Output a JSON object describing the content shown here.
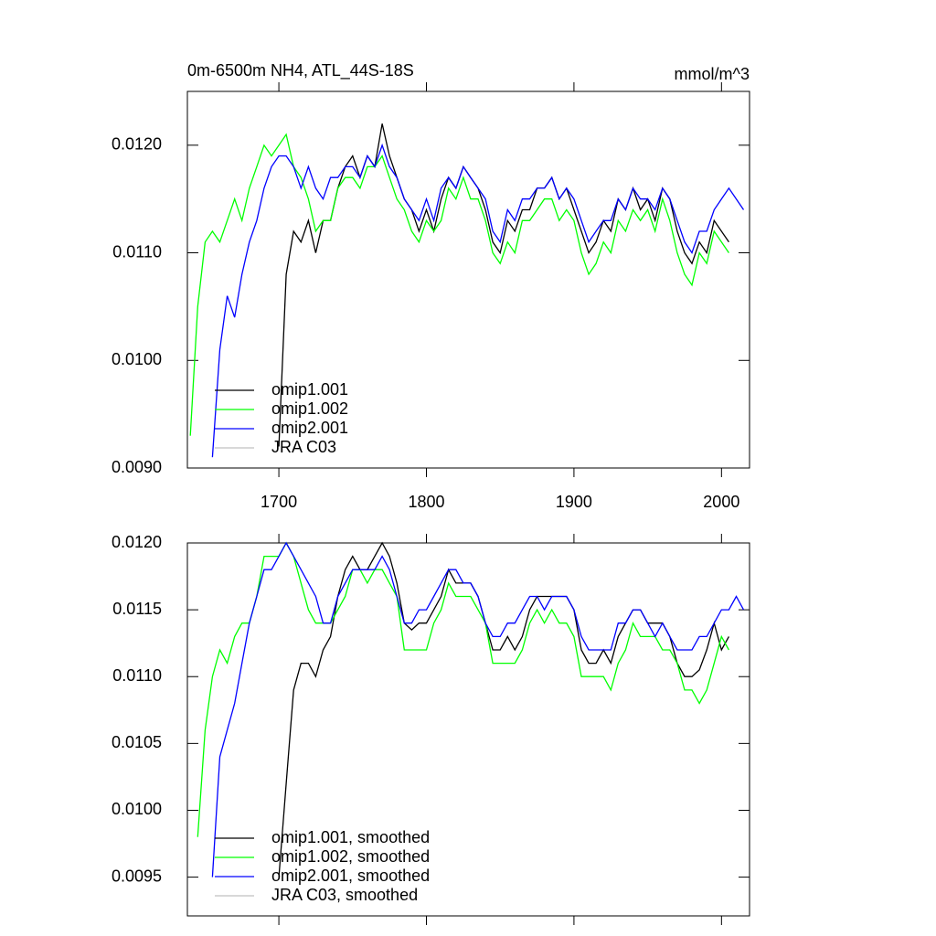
{
  "chart_data": [
    {
      "type": "line",
      "title": "0m-6500m NH4, ATL_44S-18S",
      "subtitle": "mmol/m^3",
      "x": [
        1640,
        1645,
        1650,
        1655,
        1660,
        1665,
        1670,
        1675,
        1680,
        1685,
        1690,
        1695,
        1700,
        1705,
        1710,
        1715,
        1720,
        1725,
        1730,
        1735,
        1740,
        1745,
        1750,
        1755,
        1760,
        1765,
        1770,
        1775,
        1780,
        1785,
        1790,
        1795,
        1800,
        1805,
        1810,
        1815,
        1820,
        1825,
        1830,
        1835,
        1840,
        1845,
        1850,
        1855,
        1860,
        1865,
        1870,
        1875,
        1880,
        1885,
        1890,
        1895,
        1900,
        1905,
        1910,
        1915,
        1920,
        1925,
        1930,
        1935,
        1940,
        1945,
        1950,
        1955,
        1960,
        1965,
        1970,
        1975,
        1980,
        1985,
        1990,
        1995,
        2000,
        2005,
        2010,
        2015
      ],
      "xlim": [
        1638,
        2019
      ],
      "xticks": [
        1700,
        1800,
        1900,
        2000
      ],
      "xtick_labels": true,
      "ylim": [
        0.009,
        0.0125
      ],
      "yticks": [
        {
          "value": 0.009,
          "label": "0.0090"
        },
        {
          "value": 0.01,
          "label": "0.0100"
        },
        {
          "value": 0.011,
          "label": "0.0110"
        },
        {
          "value": 0.012,
          "label": "0.0120"
        }
      ],
      "legend": "lower left",
      "series": [
        {
          "name": "omip1.001",
          "color": "#000000",
          "values": [
            null,
            null,
            null,
            null,
            null,
            null,
            null,
            null,
            null,
            null,
            null,
            null,
            0.0092,
            0.0108,
            0.0112,
            0.0111,
            0.0113,
            0.011,
            0.0113,
            0.0113,
            0.0116,
            0.0118,
            0.0119,
            0.0117,
            0.0119,
            0.0118,
            0.0122,
            0.0119,
            0.0117,
            0.0115,
            0.0114,
            0.0112,
            0.0114,
            0.0112,
            0.0115,
            0.0117,
            0.0116,
            0.0118,
            0.0117,
            0.0116,
            0.0114,
            0.0111,
            0.011,
            0.0113,
            0.0112,
            0.0114,
            0.0114,
            0.0116,
            0.0116,
            0.0117,
            0.0115,
            0.0116,
            0.0114,
            0.0112,
            0.011,
            0.0111,
            0.0113,
            0.0112,
            0.0115,
            0.0114,
            0.0116,
            0.0114,
            0.0115,
            0.0113,
            0.0116,
            0.0115,
            0.0112,
            0.011,
            0.0109,
            0.0111,
            0.011,
            0.0113,
            0.0112,
            0.0111,
            null,
            null
          ]
        },
        {
          "name": "omip1.002",
          "color": "#00ff00",
          "values": [
            0.0093,
            0.0105,
            0.0111,
            0.0112,
            0.0111,
            0.0113,
            0.0115,
            0.0113,
            0.0116,
            0.0118,
            0.012,
            0.0119,
            0.012,
            0.0121,
            0.0118,
            0.0117,
            0.0115,
            0.0112,
            0.0113,
            0.0113,
            0.0116,
            0.0117,
            0.0117,
            0.0116,
            0.0118,
            0.0118,
            0.0119,
            0.0117,
            0.0115,
            0.0114,
            0.0112,
            0.0111,
            0.0113,
            0.0112,
            0.0113,
            0.0116,
            0.0115,
            0.0117,
            0.0115,
            0.0115,
            0.0113,
            0.011,
            0.0109,
            0.0111,
            0.011,
            0.0113,
            0.0113,
            0.0114,
            0.0115,
            0.0115,
            0.0113,
            0.0114,
            0.0113,
            0.011,
            0.0108,
            0.0109,
            0.0111,
            0.011,
            0.0113,
            0.0112,
            0.0114,
            0.0113,
            0.0114,
            0.0112,
            0.0115,
            0.0113,
            0.011,
            0.0108,
            0.0107,
            0.011,
            0.0109,
            0.0112,
            0.0111,
            0.011,
            null,
            null
          ]
        },
        {
          "name": "omip2.001",
          "color": "#0000ff",
          "values": [
            null,
            null,
            null,
            0.0091,
            0.0101,
            0.0106,
            0.0104,
            0.0108,
            0.0111,
            0.0113,
            0.0116,
            0.0118,
            0.0119,
            0.0119,
            0.0118,
            0.0116,
            0.0118,
            0.0116,
            0.0115,
            0.0117,
            0.0117,
            0.0118,
            0.0118,
            0.0117,
            0.0119,
            0.0118,
            0.012,
            0.0118,
            0.0117,
            0.0115,
            0.0114,
            0.0113,
            0.0115,
            0.0113,
            0.0116,
            0.0117,
            0.0116,
            0.0118,
            0.0117,
            0.0116,
            0.0115,
            0.0112,
            0.0111,
            0.0114,
            0.0113,
            0.0115,
            0.0115,
            0.0116,
            0.0116,
            0.0117,
            0.0115,
            0.0116,
            0.0115,
            0.0113,
            0.0111,
            0.0112,
            0.0113,
            0.0113,
            0.0115,
            0.0114,
            0.0116,
            0.0115,
            0.0115,
            0.0114,
            0.0116,
            0.0115,
            0.0113,
            0.0111,
            0.011,
            0.0112,
            0.0112,
            0.0114,
            0.0115,
            0.0116,
            0.0115,
            0.0114
          ]
        },
        {
          "name": "JRA C03",
          "color": "#c0c0c0",
          "values": [
            null,
            null,
            null,
            null,
            null,
            null,
            null,
            null,
            null,
            null,
            null,
            null,
            null,
            null,
            null,
            null,
            null,
            null,
            null,
            null,
            null,
            null,
            null,
            null,
            null,
            null,
            null,
            null,
            null,
            null,
            null,
            null,
            null,
            null,
            null,
            null,
            null,
            null,
            null,
            null,
            null,
            null,
            null,
            null,
            null,
            null,
            null,
            null,
            null,
            null,
            null,
            null,
            null,
            null,
            null,
            null,
            null,
            null,
            null,
            null,
            null,
            null,
            null,
            null,
            null,
            null,
            null,
            null,
            null,
            null,
            null,
            null,
            null,
            null,
            null,
            null
          ]
        }
      ]
    },
    {
      "type": "line",
      "x": [
        1640,
        1645,
        1650,
        1655,
        1660,
        1665,
        1670,
        1675,
        1680,
        1685,
        1690,
        1695,
        1700,
        1705,
        1710,
        1715,
        1720,
        1725,
        1730,
        1735,
        1740,
        1745,
        1750,
        1755,
        1760,
        1765,
        1770,
        1775,
        1780,
        1785,
        1790,
        1795,
        1800,
        1805,
        1810,
        1815,
        1820,
        1825,
        1830,
        1835,
        1840,
        1845,
        1850,
        1855,
        1860,
        1865,
        1870,
        1875,
        1880,
        1885,
        1890,
        1895,
        1900,
        1905,
        1910,
        1915,
        1920,
        1925,
        1930,
        1935,
        1940,
        1945,
        1950,
        1955,
        1960,
        1965,
        1970,
        1975,
        1980,
        1985,
        1990,
        1995,
        2000,
        2005,
        2010,
        2015
      ],
      "xlim": [
        1638,
        2019
      ],
      "xticks": [
        1700,
        1800,
        1900,
        2000
      ],
      "xtick_labels": false,
      "ylim": [
        0.00921,
        0.012
      ],
      "yticks": [
        {
          "value": 0.0095,
          "label": "0.0095"
        },
        {
          "value": 0.01,
          "label": "0.0100"
        },
        {
          "value": 0.0105,
          "label": "0.0105"
        },
        {
          "value": 0.011,
          "label": "0.0110"
        },
        {
          "value": 0.0115,
          "label": "0.0115"
        },
        {
          "value": 0.012,
          "label": "0.0120"
        }
      ],
      "legend": "lower left",
      "series": [
        {
          "name": "omip1.001, smoothed",
          "color": "#000000",
          "values": [
            null,
            null,
            null,
            null,
            null,
            null,
            null,
            null,
            null,
            null,
            null,
            null,
            0.0095,
            0.0102,
            0.0109,
            0.0111,
            0.0111,
            0.011,
            0.0112,
            0.0113,
            0.0116,
            0.0118,
            0.0119,
            0.0118,
            0.0118,
            0.0119,
            0.012,
            0.0119,
            0.0117,
            0.0114,
            0.01135,
            0.0114,
            0.0114,
            0.0115,
            0.0116,
            0.0118,
            0.0117,
            0.0117,
            0.0117,
            0.0116,
            0.0114,
            0.0112,
            0.0112,
            0.0113,
            0.0112,
            0.0113,
            0.0115,
            0.0116,
            0.0116,
            0.0116,
            0.0116,
            0.0116,
            0.0115,
            0.0112,
            0.0111,
            0.0111,
            0.0112,
            0.0111,
            0.0113,
            0.0114,
            0.0115,
            0.0115,
            0.0114,
            0.0114,
            0.0114,
            0.0113,
            0.0111,
            0.011,
            0.011,
            0.01105,
            0.0112,
            0.0114,
            0.0112,
            0.0113,
            null,
            null
          ]
        },
        {
          "name": "omip1.002, smoothed",
          "color": "#00ff00",
          "values": [
            null,
            0.0098,
            0.0106,
            0.011,
            0.0112,
            0.0111,
            0.0113,
            0.0114,
            0.0114,
            0.0116,
            0.0119,
            0.0119,
            0.0119,
            0.012,
            0.0119,
            0.0117,
            0.0115,
            0.0114,
            0.0114,
            0.0114,
            0.0115,
            0.0116,
            0.0118,
            0.0118,
            0.0117,
            0.0118,
            0.0118,
            0.0117,
            0.0116,
            0.0112,
            0.0112,
            0.0112,
            0.0112,
            0.0114,
            0.0115,
            0.0117,
            0.0116,
            0.0116,
            0.0116,
            0.0115,
            0.0114,
            0.0111,
            0.0111,
            0.0111,
            0.0111,
            0.0112,
            0.0114,
            0.0115,
            0.0114,
            0.0115,
            0.0114,
            0.0114,
            0.0113,
            0.011,
            0.011,
            0.011,
            0.011,
            0.0109,
            0.0111,
            0.0112,
            0.0114,
            0.0113,
            0.0113,
            0.0113,
            0.0112,
            0.0112,
            0.0111,
            0.0109,
            0.0109,
            0.0108,
            0.0109,
            0.0111,
            0.0113,
            0.0112,
            null,
            null
          ]
        },
        {
          "name": "omip2.001, smoothed",
          "color": "#0000ff",
          "values": [
            null,
            null,
            null,
            0.0095,
            0.0104,
            0.0106,
            0.0108,
            0.0111,
            0.0114,
            0.0116,
            0.0118,
            0.0118,
            0.0119,
            0.012,
            0.0119,
            0.0118,
            0.0117,
            0.0116,
            0.0114,
            0.0114,
            0.0116,
            0.0117,
            0.0118,
            0.0118,
            0.0118,
            0.0118,
            0.0119,
            0.0118,
            0.0116,
            0.0114,
            0.0114,
            0.0115,
            0.0115,
            0.0116,
            0.0117,
            0.0118,
            0.0118,
            0.0117,
            0.0117,
            0.0116,
            0.0114,
            0.0113,
            0.0113,
            0.0114,
            0.0114,
            0.0115,
            0.0116,
            0.0116,
            0.0115,
            0.0116,
            0.0116,
            0.0116,
            0.0115,
            0.0113,
            0.0112,
            0.0112,
            0.0112,
            0.0112,
            0.0114,
            0.0114,
            0.0115,
            0.0115,
            0.0114,
            0.0113,
            0.0114,
            0.0113,
            0.0112,
            0.0112,
            0.0112,
            0.0113,
            0.0113,
            0.0114,
            0.0115,
            0.0115,
            0.0116,
            0.0115
          ]
        },
        {
          "name": "JRA C03, smoothed",
          "color": "#c0c0c0",
          "values": [
            null,
            null,
            null,
            null,
            null,
            null,
            null,
            null,
            null,
            null,
            null,
            null,
            null,
            null,
            null,
            null,
            null,
            null,
            null,
            null,
            null,
            null,
            null,
            null,
            null,
            null,
            null,
            null,
            null,
            null,
            null,
            null,
            null,
            null,
            null,
            null,
            null,
            null,
            null,
            null,
            null,
            null,
            null,
            null,
            null,
            null,
            null,
            null,
            null,
            null,
            null,
            null,
            null,
            null,
            null,
            null,
            null,
            null,
            null,
            null,
            null,
            null,
            null,
            null,
            null,
            null,
            null,
            null,
            null,
            null,
            null,
            null,
            null,
            null,
            null,
            null
          ]
        }
      ]
    }
  ]
}
